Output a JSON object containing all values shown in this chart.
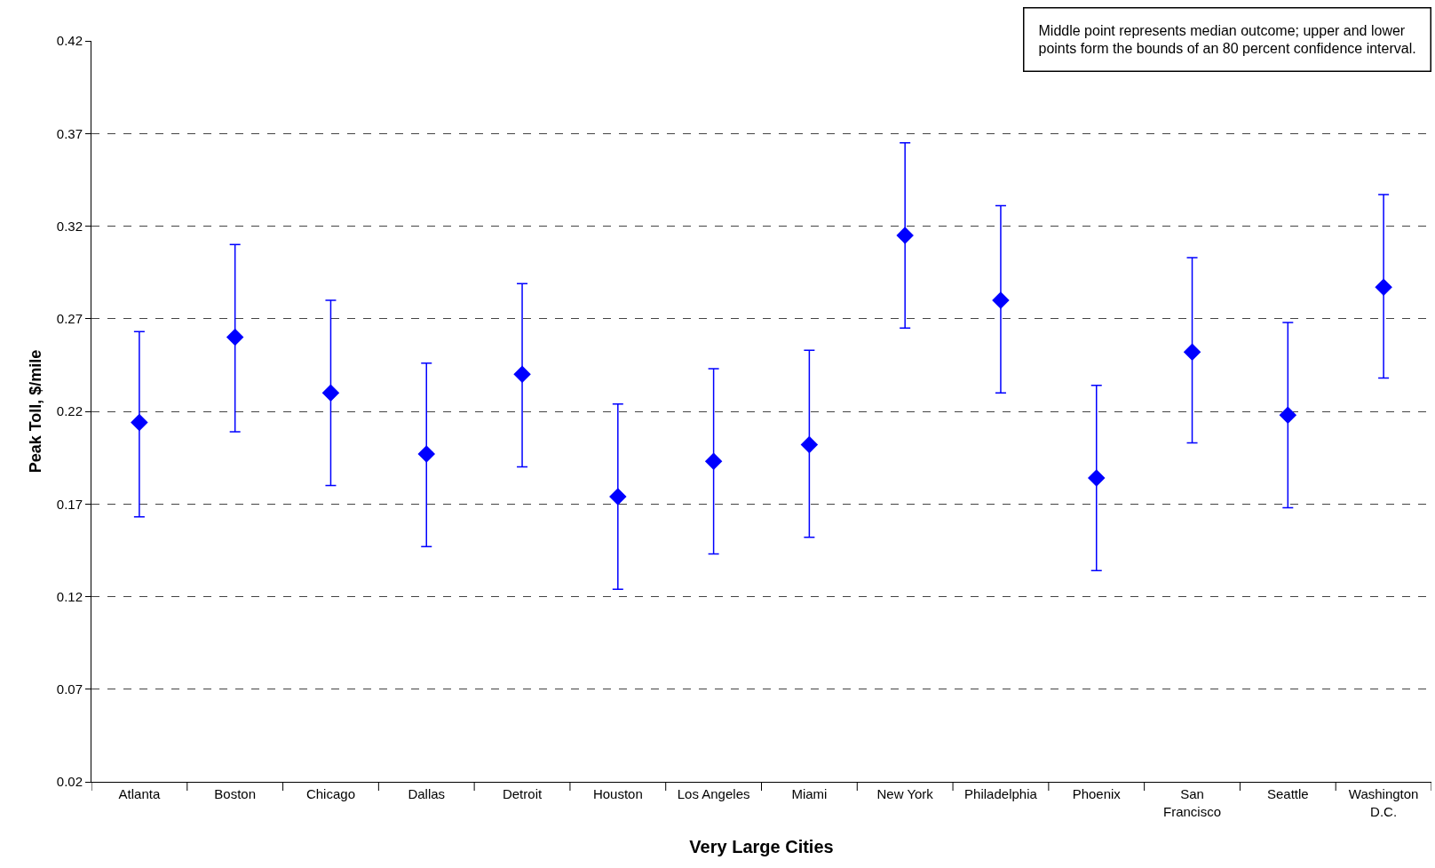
{
  "chart_data": {
    "type": "scatter",
    "xlabel": "Very Large Cities",
    "ylabel": "Peak Toll, $/mile",
    "categories": [
      "Atlanta",
      "Boston",
      "Chicago",
      "Dallas",
      "Detroit",
      "Houston",
      "Los Angeles",
      "Miami",
      "New York",
      "Philadelphia",
      "Phoenix",
      "San Francisco",
      "Seattle",
      "Washington D.C."
    ],
    "series": [
      {
        "color": "#0000ff",
        "values": [
          0.214,
          0.26,
          0.23,
          0.197,
          0.24,
          0.174,
          0.193,
          0.202,
          0.315,
          0.28,
          0.184,
          0.252,
          0.218,
          0.287
        ],
        "errors": [
          [
            0.163,
            0.263
          ],
          [
            0.209,
            0.31
          ],
          [
            0.18,
            0.28
          ],
          [
            0.147,
            0.246
          ],
          [
            0.19,
            0.289
          ],
          [
            0.124,
            0.224
          ],
          [
            0.143,
            0.243
          ],
          [
            0.152,
            0.253
          ],
          [
            0.265,
            0.365
          ],
          [
            0.23,
            0.331
          ],
          [
            0.134,
            0.234
          ],
          [
            0.203,
            0.303
          ],
          [
            0.168,
            0.268
          ],
          [
            0.238,
            0.337
          ]
        ]
      }
    ],
    "ylim": [
      0.02,
      0.42
    ],
    "yticks": [
      0.02,
      0.07,
      0.12,
      0.17,
      0.22,
      0.27,
      0.32,
      0.37,
      0.42
    ],
    "grid": "y",
    "marker": "diamond",
    "annotations": [
      "Middle point represents median outcome; upper and lower\npoints form the bounds of an 80 percent confidence interval."
    ]
  }
}
